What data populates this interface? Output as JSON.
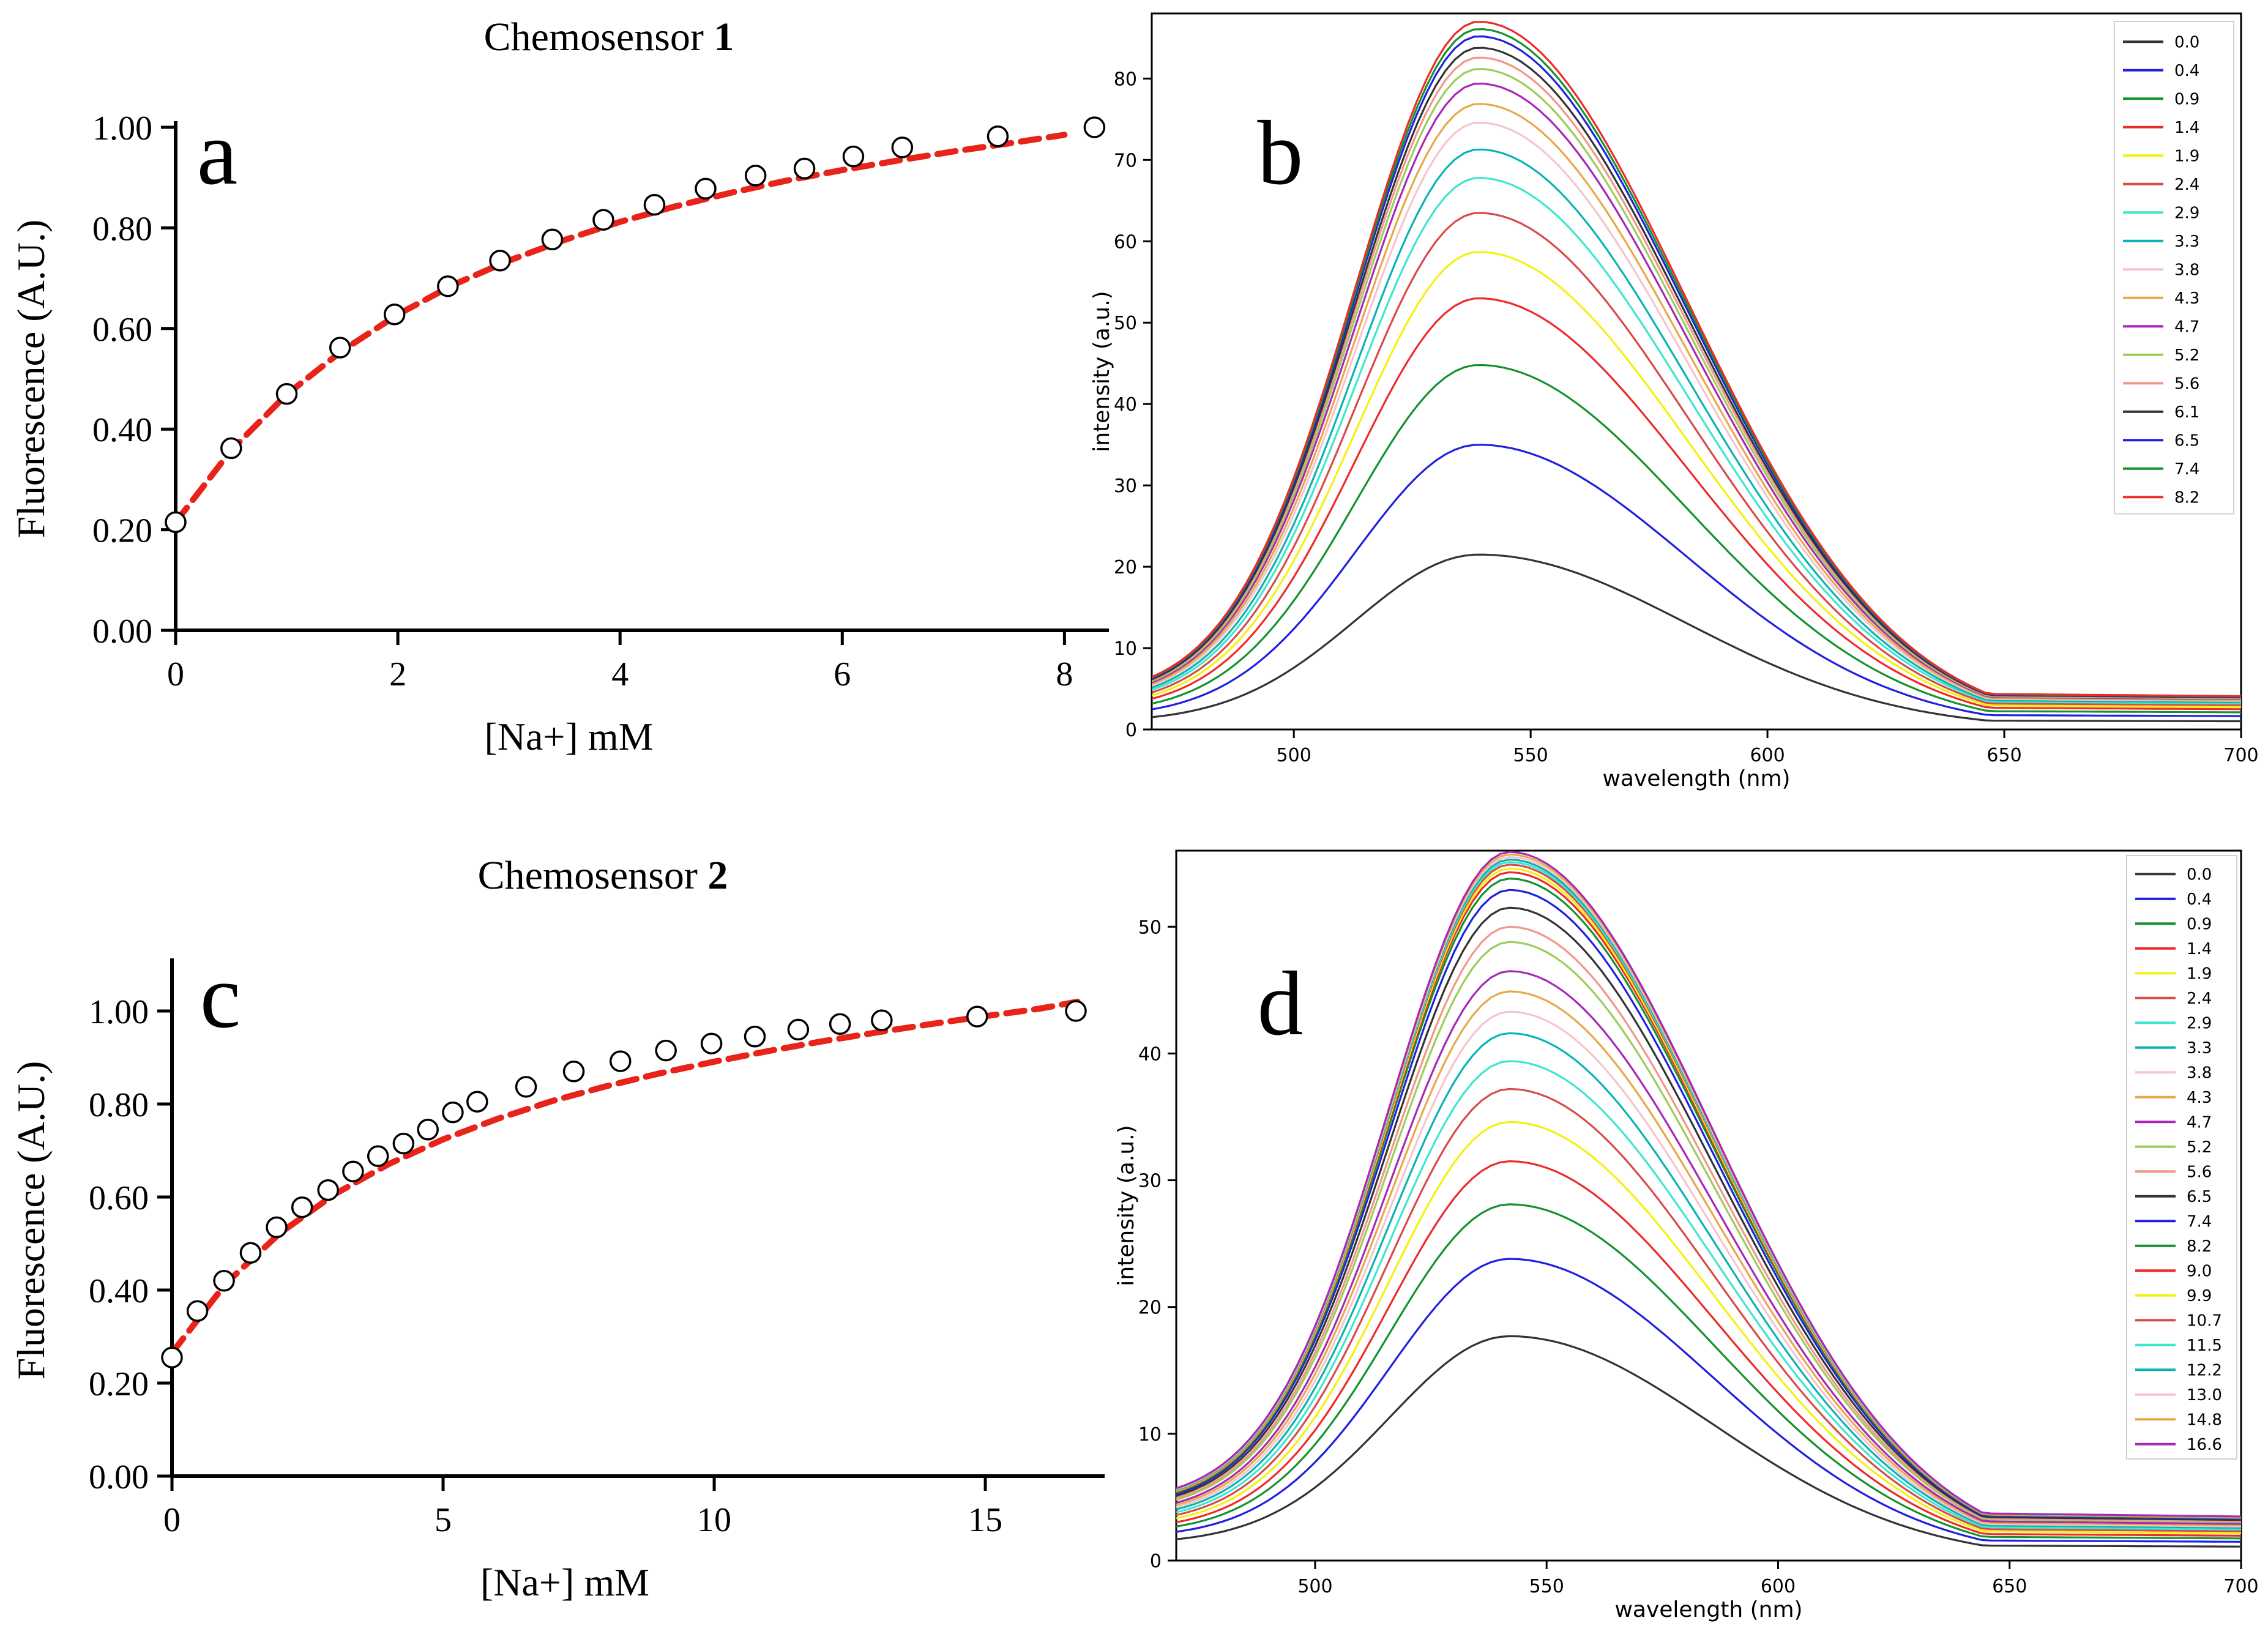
{
  "chart_data": [
    {
      "id": "a",
      "type": "scatter",
      "panel_letter": "a",
      "title": "Chemosensor 1",
      "title_bold_part": "1",
      "xlabel": "[Na+] mM",
      "ylabel": "Fluorescence (A.U.)",
      "xlim": [
        0,
        8.4
      ],
      "ylim": [
        0,
        1.0
      ],
      "xticks": [
        "0",
        "2",
        "4",
        "6",
        "8"
      ],
      "yticks": [
        "0.00",
        "0.20",
        "0.40",
        "0.60",
        "0.80",
        "1.00"
      ],
      "points": {
        "x": [
          0,
          0.5,
          1.0,
          1.48,
          1.97,
          2.45,
          2.92,
          3.39,
          3.85,
          4.31,
          4.77,
          5.22,
          5.66,
          6.1,
          6.54,
          7.4,
          8.27
        ],
        "y": [
          0.215,
          0.362,
          0.47,
          0.562,
          0.628,
          0.684,
          0.735,
          0.777,
          0.816,
          0.846,
          0.878,
          0.904,
          0.918,
          0.942,
          0.96,
          0.982,
          1.0
        ]
      },
      "fit": {
        "x": [
          0,
          0.5,
          1,
          1.5,
          2,
          2.5,
          3,
          3.5,
          4,
          4.5,
          5,
          5.5,
          6,
          6.5,
          7,
          7.5,
          8
        ],
        "y": [
          0.215,
          0.358,
          0.469,
          0.556,
          0.628,
          0.687,
          0.735,
          0.776,
          0.812,
          0.843,
          0.87,
          0.894,
          0.915,
          0.934,
          0.952,
          0.968,
          0.985
        ]
      },
      "colors": {
        "fit": "#e8231a",
        "marker": "#000000"
      }
    },
    {
      "id": "b",
      "type": "line",
      "panel_letter": "b",
      "xlabel": "wavelength (nm)",
      "ylabel": "intensity (a.u.)",
      "xlim": [
        470,
        700
      ],
      "ylim": [
        0,
        88
      ],
      "xticks": [
        500,
        550,
        600,
        650,
        700
      ],
      "yticks": [
        0,
        10,
        20,
        30,
        40,
        50,
        60,
        70,
        80
      ],
      "peak_x": 539,
      "tail_fraction": 0.053,
      "start_fraction": 0.042,
      "series": [
        {
          "name": "0.0",
          "peak": 21.5,
          "color": "#333333"
        },
        {
          "name": "0.4",
          "peak": 35.0,
          "color": "#2020e0"
        },
        {
          "name": "0.9",
          "peak": 44.8,
          "color": "#13922e"
        },
        {
          "name": "1.4",
          "peak": 53.0,
          "color": "#ee2a2a"
        },
        {
          "name": "1.9",
          "peak": 58.7,
          "color": "#f2f20e"
        },
        {
          "name": "2.4",
          "peak": 63.5,
          "color": "#d94a4a"
        },
        {
          "name": "2.9",
          "peak": 67.8,
          "color": "#3ee6d0"
        },
        {
          "name": "3.3",
          "peak": 71.3,
          "color": "#0ab3b3"
        },
        {
          "name": "3.8",
          "peak": 74.6,
          "color": "#f6c4cc"
        },
        {
          "name": "4.3",
          "peak": 76.9,
          "color": "#e8a84a"
        },
        {
          "name": "4.7",
          "peak": 79.4,
          "color": "#a628b8"
        },
        {
          "name": "5.2",
          "peak": 81.2,
          "color": "#9ccc5a"
        },
        {
          "name": "5.6",
          "peak": 82.6,
          "color": "#f2968a"
        },
        {
          "name": "6.1",
          "peak": 83.8,
          "color": "#333333"
        },
        {
          "name": "6.5",
          "peak": 85.2,
          "color": "#2020e0"
        },
        {
          "name": "7.4",
          "peak": 86.1,
          "color": "#13922e"
        },
        {
          "name": "8.2",
          "peak": 87.0,
          "color": "#ee2a2a"
        }
      ]
    },
    {
      "id": "c",
      "type": "scatter",
      "panel_letter": "c",
      "title": "Chemosensor 2",
      "title_bold_part": "2",
      "xlabel": "[Na+] mM",
      "ylabel": "Fluorescence (A.U.)",
      "xlim": [
        0,
        17.2
      ],
      "ylim": [
        0,
        1.1
      ],
      "xticks": [
        "0",
        "5",
        "10",
        "15"
      ],
      "yticks": [
        "0.00",
        "0.20",
        "0.40",
        "0.60",
        "0.80",
        "1.00"
      ],
      "points": {
        "x": [
          0,
          0.47,
          0.96,
          1.45,
          1.93,
          2.4,
          2.88,
          3.34,
          3.8,
          4.27,
          4.72,
          5.18,
          5.63,
          6.53,
          7.41,
          8.27,
          9.11,
          9.95,
          10.75,
          11.55,
          12.32,
          13.09,
          14.85,
          16.67
        ],
        "y": [
          0.255,
          0.355,
          0.42,
          0.48,
          0.535,
          0.578,
          0.615,
          0.655,
          0.688,
          0.715,
          0.745,
          0.782,
          0.805,
          0.837,
          0.87,
          0.892,
          0.915,
          0.93,
          0.945,
          0.96,
          0.972,
          0.98,
          0.988,
          1.0
        ]
      },
      "fit": {
        "x": [
          0,
          1,
          2,
          3,
          4,
          5,
          6,
          7,
          8,
          9,
          10,
          11,
          12,
          13,
          14,
          15,
          16,
          16.7
        ],
        "y": [
          0.265,
          0.415,
          0.523,
          0.606,
          0.671,
          0.724,
          0.768,
          0.806,
          0.838,
          0.866,
          0.891,
          0.914,
          0.935,
          0.954,
          0.972,
          0.989,
          1.005,
          1.02
        ]
      },
      "colors": {
        "fit": "#e8231a",
        "marker": "#000000"
      }
    },
    {
      "id": "d",
      "type": "line",
      "panel_letter": "d",
      "xlabel": "wavelength (nm)",
      "ylabel": "intensity (a.u.)",
      "xlim": [
        470,
        700
      ],
      "ylim": [
        0,
        56
      ],
      "xticks": [
        500,
        550,
        600,
        650,
        700
      ],
      "yticks": [
        0,
        10,
        20,
        30,
        40,
        50
      ],
      "peak_x": 542,
      "tail_fraction": 0.07,
      "start_fraction": 0.075,
      "series": [
        {
          "name": "0.0",
          "peak": 17.7,
          "color": "#333333"
        },
        {
          "name": "0.4",
          "peak": 23.8,
          "color": "#2020e0"
        },
        {
          "name": "0.9",
          "peak": 28.1,
          "color": "#13922e"
        },
        {
          "name": "1.4",
          "peak": 31.5,
          "color": "#ee2a2a"
        },
        {
          "name": "1.9",
          "peak": 34.6,
          "color": "#f2f20e"
        },
        {
          "name": "2.4",
          "peak": 37.2,
          "color": "#d94a4a"
        },
        {
          "name": "2.9",
          "peak": 39.4,
          "color": "#3ee6d0"
        },
        {
          "name": "3.3",
          "peak": 41.6,
          "color": "#0ab3b3"
        },
        {
          "name": "3.8",
          "peak": 43.3,
          "color": "#f6c4cc"
        },
        {
          "name": "4.3",
          "peak": 44.9,
          "color": "#e8a84a"
        },
        {
          "name": "4.7",
          "peak": 46.5,
          "color": "#a628b8"
        },
        {
          "name": "5.2",
          "peak": 48.8,
          "color": "#9ccc5a"
        },
        {
          "name": "5.6",
          "peak": 50.0,
          "color": "#f2968a"
        },
        {
          "name": "6.5",
          "peak": 51.5,
          "color": "#333333"
        },
        {
          "name": "7.4",
          "peak": 52.9,
          "color": "#2020e0"
        },
        {
          "name": "8.2",
          "peak": 53.8,
          "color": "#13922e"
        },
        {
          "name": "9.0",
          "peak": 54.3,
          "color": "#ee2a2a"
        },
        {
          "name": "9.9",
          "peak": 54.6,
          "color": "#f2f20e"
        },
        {
          "name": "10.7",
          "peak": 54.9,
          "color": "#d94a4a"
        },
        {
          "name": "11.5",
          "peak": 55.1,
          "color": "#3ee6d0"
        },
        {
          "name": "12.2",
          "peak": 55.3,
          "color": "#0ab3b3"
        },
        {
          "name": "13.0",
          "peak": 55.5,
          "color": "#f6c4cc"
        },
        {
          "name": "14.8",
          "peak": 55.7,
          "color": "#e8a84a"
        },
        {
          "name": "16.6",
          "peak": 55.9,
          "color": "#a628b8"
        }
      ]
    }
  ]
}
